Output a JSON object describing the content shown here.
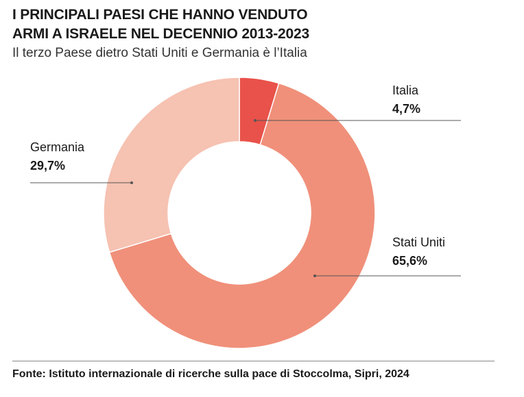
{
  "header": {
    "title_line1": "I PRINCIPALI PAESI CHE HANNO VENDUTO",
    "title_line2": "ARMI A ISRAELE NEL DECENNIO 2013-2023",
    "subtitle": "Il terzo Paese dietro Stati Uniti e Germania è l’Italia"
  },
  "footer": {
    "source": "Fonte: Istituto internazionale di ricerche sulla pace di Stoccolma, Sipri, 2024"
  },
  "chart_data": {
    "type": "pie",
    "variant": "donut",
    "slices": [
      {
        "name": "Italia",
        "value": 4.7,
        "label": "4,7%",
        "color": "#e8524a"
      },
      {
        "name": "Stati Uniti",
        "value": 65.6,
        "label": "65,6%",
        "color": "#f0907a"
      },
      {
        "name": "Germania",
        "value": 29.7,
        "label": "29,7%",
        "color": "#f6c2b2"
      }
    ]
  }
}
